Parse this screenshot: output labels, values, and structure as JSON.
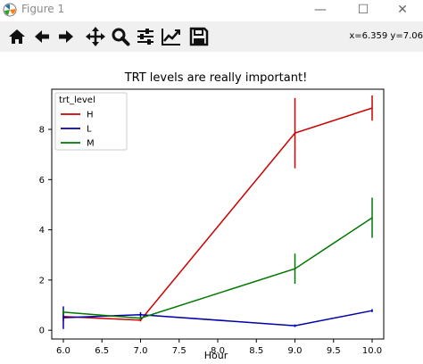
{
  "window": {
    "title": "Figure 1",
    "minimize_glyph": "—",
    "maximize_glyph": "☐",
    "close_glyph": "✕"
  },
  "toolbar": {
    "tools": [
      {
        "name": "home",
        "icon": "home-icon"
      },
      {
        "name": "back",
        "icon": "arrow-left-icon"
      },
      {
        "name": "forward",
        "icon": "arrow-right-icon"
      },
      {
        "name": "pan",
        "icon": "move-icon"
      },
      {
        "name": "zoom",
        "icon": "zoom-icon"
      },
      {
        "name": "subplots",
        "icon": "sliders-icon"
      },
      {
        "name": "edit-axes",
        "icon": "line-chart-icon"
      },
      {
        "name": "save",
        "icon": "save-icon"
      }
    ],
    "coords": "x=6.359 y=7.06"
  },
  "chart_data": {
    "type": "line",
    "title": "TRT levels are really important!",
    "xlabel": "Hour",
    "ylabel": "",
    "xlim": [
      5.85,
      10.15
    ],
    "ylim": [
      -0.35,
      9.6
    ],
    "xticks": [
      "6.0",
      "6.5",
      "7.0",
      "7.5",
      "8.0",
      "8.5",
      "9.0",
      "9.5",
      "10.0"
    ],
    "xtick_values": [
      6.0,
      6.5,
      7.0,
      7.5,
      8.0,
      8.5,
      9.0,
      9.5,
      10.0
    ],
    "yticks": [
      "0",
      "2",
      "4",
      "6",
      "8"
    ],
    "ytick_values": [
      0,
      2,
      4,
      6,
      8
    ],
    "legend": {
      "title": "trt_level",
      "placement": "top-left"
    },
    "series": [
      {
        "name": "H",
        "color": "#cc0000",
        "x": [
          6,
          7,
          9,
          10
        ],
        "y": [
          0.55,
          0.4,
          7.85,
          8.85
        ],
        "err": [
          0.2,
          0.05,
          1.4,
          0.5
        ]
      },
      {
        "name": "L",
        "color": "#0000aa",
        "x": [
          6,
          7,
          9,
          10
        ],
        "y": [
          0.5,
          0.62,
          0.18,
          0.78
        ],
        "err": [
          0.45,
          0.1,
          0.05,
          0.06
        ]
      },
      {
        "name": "M",
        "color": "#007700",
        "x": [
          6,
          7,
          9,
          10
        ],
        "y": [
          0.72,
          0.48,
          2.45,
          4.48
        ],
        "err": [
          0.1,
          0.05,
          0.6,
          0.8
        ]
      }
    ]
  }
}
